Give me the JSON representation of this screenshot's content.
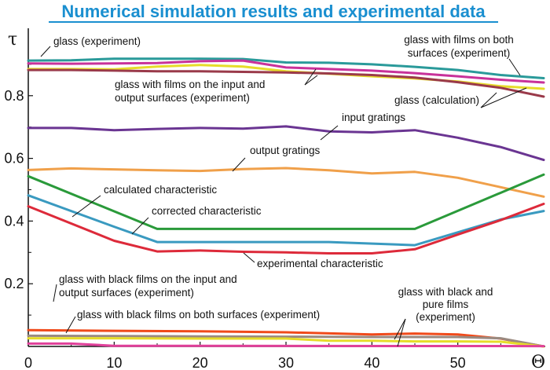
{
  "chart_data": {
    "type": "line",
    "title": "Numerical simulation results and experimental data",
    "xlabel": "Θ",
    "ylabel": "τ",
    "xlim": [
      0,
      60
    ],
    "ylim": [
      0,
      1.0
    ],
    "x_ticks": [
      "0",
      "10",
      "20",
      "30",
      "40",
      "50"
    ],
    "y_ticks": [
      "0.2",
      "0.4",
      "0.6",
      "0.8"
    ],
    "grid": false,
    "series": [
      {
        "key": "teal",
        "color": "#2a9a9a",
        "x": [
          0,
          5,
          10,
          15,
          20,
          25,
          30,
          35,
          40,
          45,
          50,
          55,
          60
        ],
        "y": [
          0.912,
          0.913,
          0.918,
          0.918,
          0.918,
          0.917,
          0.906,
          0.905,
          0.9,
          0.892,
          0.882,
          0.866,
          0.856
        ]
      },
      {
        "key": "magenta",
        "color": "#c8329a",
        "x": [
          0,
          5,
          10,
          15,
          20,
          25,
          30,
          35,
          40,
          45,
          50,
          55,
          60
        ],
        "y": [
          0.903,
          0.902,
          0.903,
          0.904,
          0.91,
          0.912,
          0.89,
          0.885,
          0.88,
          0.872,
          0.862,
          0.851,
          0.842
        ]
      },
      {
        "key": "yellow",
        "color": "#e6dc2a",
        "x": [
          0,
          5,
          10,
          15,
          20,
          25,
          30,
          35,
          40,
          45,
          50,
          55,
          60
        ],
        "y": [
          0.885,
          0.885,
          0.884,
          0.893,
          0.898,
          0.893,
          0.878,
          0.87,
          0.862,
          0.855,
          0.845,
          0.83,
          0.822
        ]
      },
      {
        "key": "brown",
        "color": "#9a3a4a",
        "x": [
          0,
          5,
          10,
          15,
          20,
          25,
          30,
          35,
          40,
          45,
          50,
          55,
          60
        ],
        "y": [
          0.882,
          0.882,
          0.88,
          0.878,
          0.878,
          0.876,
          0.874,
          0.871,
          0.866,
          0.858,
          0.843,
          0.825,
          0.797
        ]
      },
      {
        "key": "purple",
        "color": "#6a3592",
        "x": [
          0,
          5,
          10,
          15,
          20,
          25,
          30,
          35,
          40,
          45,
          50,
          55,
          60
        ],
        "y": [
          0.697,
          0.697,
          0.69,
          0.694,
          0.697,
          0.695,
          0.702,
          0.686,
          0.683,
          0.69,
          0.666,
          0.636,
          0.595
        ]
      },
      {
        "key": "orange",
        "color": "#f0a04a",
        "x": [
          0,
          5,
          10,
          15,
          20,
          25,
          30,
          35,
          40,
          45,
          50,
          55,
          60
        ],
        "y": [
          0.563,
          0.568,
          0.565,
          0.562,
          0.56,
          0.566,
          0.569,
          0.562,
          0.552,
          0.557,
          0.538,
          0.508,
          0.478
        ]
      },
      {
        "key": "green",
        "color": "#2a9a3a",
        "x": [
          0,
          15,
          25,
          35,
          45,
          60
        ],
        "y": [
          0.543,
          0.375,
          0.375,
          0.375,
          0.375,
          0.548
        ]
      },
      {
        "key": "blue",
        "color": "#3a9ac0",
        "x": [
          0,
          10,
          15,
          25,
          35,
          45,
          55,
          60
        ],
        "y": [
          0.482,
          0.382,
          0.333,
          0.333,
          0.333,
          0.323,
          0.405,
          0.432
        ]
      },
      {
        "key": "red",
        "color": "#dd2a3a",
        "x": [
          0,
          10,
          15,
          20,
          25,
          30,
          35,
          40,
          45,
          50,
          55,
          60
        ],
        "y": [
          0.447,
          0.337,
          0.303,
          0.306,
          0.302,
          0.3,
          0.297,
          0.297,
          0.31,
          0.357,
          0.403,
          0.455
        ]
      },
      {
        "key": "red-orange",
        "color": "#f04a1a",
        "x": [
          0,
          10,
          20,
          30,
          40,
          45,
          50,
          55,
          60
        ],
        "y": [
          0.052,
          0.05,
          0.048,
          0.045,
          0.038,
          0.041,
          0.038,
          0.025,
          0.0
        ]
      },
      {
        "key": "gray",
        "color": "#9a8a80",
        "x": [
          0,
          10,
          20,
          30,
          40,
          50,
          55,
          60
        ],
        "y": [
          0.034,
          0.033,
          0.032,
          0.031,
          0.03,
          0.03,
          0.026,
          0.0
        ]
      },
      {
        "key": "yellow-low",
        "color": "#e6dc2a",
        "x": [
          0,
          10,
          20,
          30,
          35,
          40,
          45,
          50,
          55,
          60
        ],
        "y": [
          0.026,
          0.026,
          0.025,
          0.025,
          0.018,
          0.018,
          0.016,
          0.016,
          0.015,
          0.0
        ]
      },
      {
        "key": "pink-low",
        "color": "#e0409a",
        "x": [
          0,
          5,
          10,
          60
        ],
        "y": [
          0.009,
          0.009,
          0.002,
          0.001
        ]
      }
    ],
    "annotations": [
      {
        "text": "glass (experiment)"
      },
      {
        "text": "glass with films on both surfaces (experiment)"
      },
      {
        "text": "glass with films on the input and output surfaces (experiment)"
      },
      {
        "text": "glass (calculation)"
      },
      {
        "text": "input gratings"
      },
      {
        "text": "output gratings"
      },
      {
        "text": "calculated characteristic"
      },
      {
        "text": "corrected characteristic"
      },
      {
        "text": "experimental characteristic"
      },
      {
        "text": "glass with black films on the input and output surfaces (experiment)"
      },
      {
        "text": "glass with black films on both surfaces (experiment)"
      },
      {
        "text": "glass with black and pure films (experiment)"
      }
    ]
  }
}
